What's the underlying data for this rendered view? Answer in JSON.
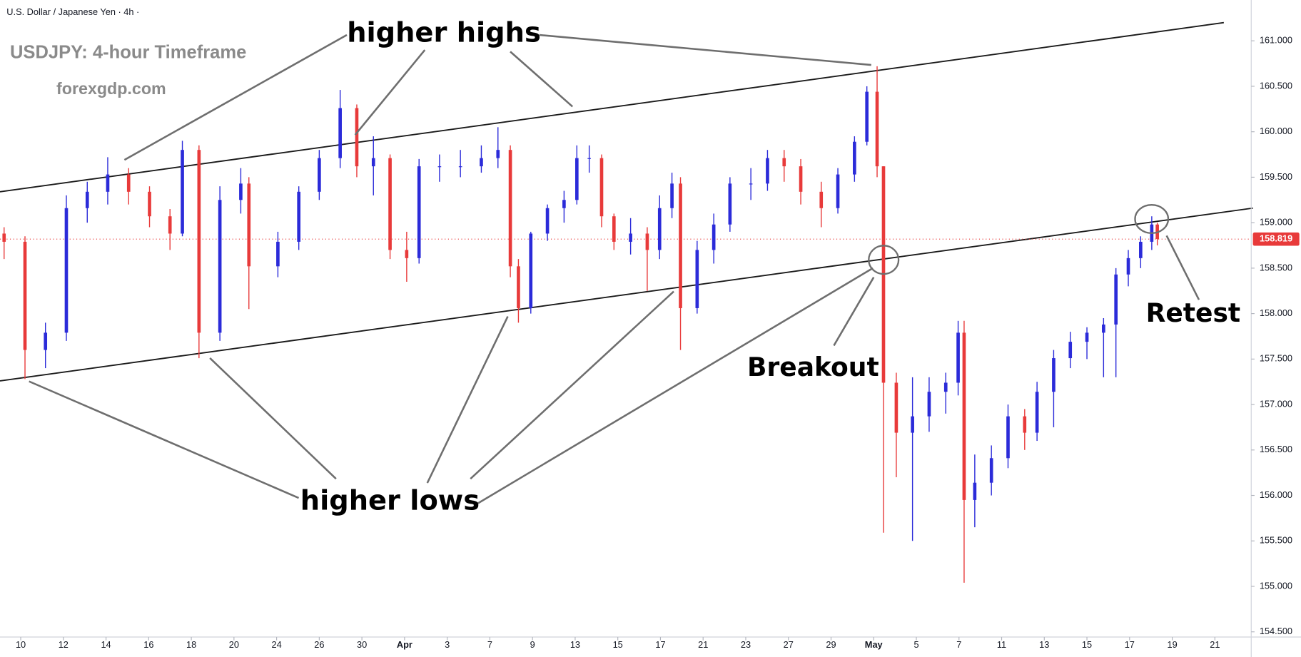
{
  "chart_data": {
    "type": "candlestick",
    "header": "U.S. Dollar / Japanese Yen · 4h ·",
    "title": "USDJPY: 4-hour Timeframe",
    "subtitle": "forexgdp.com",
    "annotations": [
      "higher highs",
      "higher lows",
      "Breakout",
      "Retest"
    ],
    "up_color": "#2b2bd9",
    "down_color": "#e83a3a",
    "x": [
      -0.39,
      0.1,
      0.58,
      1.07,
      1.56,
      2.04,
      2.53,
      3.02,
      3.5,
      3.79,
      4.18,
      4.67,
      5.16,
      5.35,
      6.03,
      6.52,
      7.0,
      7.49,
      7.88,
      8.27,
      8.66,
      9.05,
      9.34,
      9.82,
      10.31,
      10.8,
      11.19,
      11.48,
      11.67,
      11.96,
      12.35,
      12.74,
      13.04,
      13.33,
      13.62,
      13.91,
      14.3,
      14.69,
      14.98,
      15.27,
      15.47,
      15.86,
      16.25,
      16.63,
      17.12,
      17.51,
      17.9,
      18.29,
      18.77,
      19.16,
      19.55,
      19.84,
      20.08,
      20.23,
      20.53,
      20.91,
      21.3,
      21.69,
      21.98,
      22.12,
      22.37,
      22.76,
      23.15,
      23.54,
      23.83,
      24.22,
      24.61,
      25.0,
      25.39,
      25.68,
      25.97,
      26.26,
      26.52,
      26.65
    ],
    "open": [
      158.88,
      158.79,
      157.6,
      157.79,
      159.16,
      159.34,
      159.53,
      159.34,
      159.07,
      158.88,
      159.8,
      157.79,
      159.25,
      159.43,
      158.52,
      158.79,
      159.34,
      159.71,
      160.26,
      159.62,
      159.71,
      158.7,
      158.61,
      159.62,
      159.62,
      159.62,
      159.71,
      159.8,
      158.52,
      158.06,
      158.88,
      159.16,
      159.25,
      159.71,
      159.71,
      159.07,
      158.79,
      158.88,
      158.7,
      159.16,
      159.43,
      158.06,
      158.7,
      158.98,
      159.43,
      159.43,
      159.71,
      159.62,
      159.34,
      159.16,
      159.53,
      159.89,
      160.44,
      159.62,
      157.24,
      156.69,
      156.87,
      157.14,
      157.24,
      157.79,
      155.95,
      156.14,
      156.41,
      156.87,
      156.69,
      157.14,
      157.51,
      157.69,
      157.79,
      157.88,
      158.43,
      158.61,
      158.79,
      158.98
    ],
    "high": [
      158.95,
      158.85,
      157.9,
      159.3,
      159.45,
      159.72,
      159.6,
      159.4,
      159.15,
      159.9,
      159.85,
      159.4,
      159.6,
      159.5,
      158.9,
      159.4,
      159.8,
      160.46,
      160.3,
      159.95,
      159.75,
      158.9,
      159.7,
      159.75,
      159.8,
      159.85,
      160.05,
      159.85,
      158.6,
      158.9,
      159.2,
      159.35,
      159.85,
      159.85,
      159.75,
      159.1,
      159.05,
      158.95,
      159.3,
      159.55,
      159.5,
      158.8,
      159.1,
      159.5,
      159.6,
      159.8,
      159.8,
      159.7,
      159.45,
      159.6,
      159.95,
      160.5,
      160.72,
      159.62,
      157.35,
      157.3,
      157.3,
      157.35,
      157.92,
      157.92,
      156.45,
      156.55,
      157.0,
      156.95,
      157.25,
      157.6,
      157.8,
      157.85,
      157.95,
      158.5,
      158.7,
      158.85,
      159.07,
      159.0
    ],
    "low": [
      158.6,
      157.28,
      157.4,
      157.7,
      159.0,
      159.2,
      159.2,
      158.95,
      158.7,
      158.85,
      157.51,
      157.7,
      159.1,
      158.05,
      158.4,
      158.7,
      159.25,
      159.6,
      159.5,
      159.3,
      158.6,
      158.35,
      158.55,
      159.45,
      159.5,
      159.55,
      159.6,
      158.4,
      157.9,
      158.0,
      158.8,
      159.0,
      159.2,
      159.55,
      158.95,
      158.7,
      158.65,
      158.25,
      158.6,
      159.05,
      157.6,
      158.0,
      158.55,
      158.9,
      159.25,
      159.35,
      159.45,
      159.2,
      158.95,
      159.1,
      159.45,
      159.85,
      159.5,
      155.59,
      156.2,
      155.5,
      156.7,
      156.9,
      157.1,
      155.04,
      155.65,
      156.0,
      156.3,
      156.5,
      156.6,
      156.75,
      157.4,
      157.5,
      157.3,
      157.3,
      158.3,
      158.5,
      158.7,
      158.75
    ],
    "close": [
      158.79,
      157.6,
      157.79,
      159.16,
      159.34,
      159.53,
      159.34,
      159.07,
      158.88,
      159.8,
      157.79,
      159.25,
      159.43,
      158.52,
      158.79,
      159.34,
      159.71,
      160.26,
      159.62,
      159.71,
      158.7,
      158.61,
      159.62,
      159.62,
      159.62,
      159.71,
      159.8,
      158.52,
      158.06,
      158.88,
      159.16,
      159.25,
      159.71,
      159.71,
      159.07,
      158.79,
      158.88,
      158.7,
      159.16,
      159.43,
      158.06,
      158.7,
      158.98,
      159.43,
      159.43,
      159.71,
      159.62,
      159.34,
      159.16,
      159.53,
      159.89,
      160.44,
      159.62,
      157.24,
      156.69,
      156.87,
      157.14,
      157.24,
      157.79,
      155.95,
      156.14,
      156.41,
      156.87,
      156.69,
      157.14,
      157.51,
      157.69,
      157.79,
      157.88,
      158.43,
      158.61,
      158.79,
      158.98,
      158.82
    ],
    "xlim": [
      -0.486,
      28.852
    ],
    "ylim": [
      154.443,
      161.449
    ],
    "xticks": [
      {
        "value": 0,
        "label": "10"
      },
      {
        "value": 1,
        "label": "12"
      },
      {
        "value": 2,
        "label": "14"
      },
      {
        "value": 3,
        "label": "16"
      },
      {
        "value": 4,
        "label": "18"
      },
      {
        "value": 5,
        "label": "20"
      },
      {
        "value": 6,
        "label": "24"
      },
      {
        "value": 7,
        "label": "26"
      },
      {
        "value": 8,
        "label": "30"
      },
      {
        "value": 9,
        "label": "Apr"
      },
      {
        "value": 10,
        "label": "3"
      },
      {
        "value": 11,
        "label": "7"
      },
      {
        "value": 12,
        "label": "9"
      },
      {
        "value": 13,
        "label": "13"
      },
      {
        "value": 14,
        "label": "15"
      },
      {
        "value": 15,
        "label": "17"
      },
      {
        "value": 16,
        "label": "21"
      },
      {
        "value": 17,
        "label": "23"
      },
      {
        "value": 18,
        "label": "27"
      },
      {
        "value": 19,
        "label": "29"
      },
      {
        "value": 20,
        "label": "May"
      },
      {
        "value": 21,
        "label": "5"
      },
      {
        "value": 22,
        "label": "7"
      },
      {
        "value": 23,
        "label": "11"
      },
      {
        "value": 24,
        "label": "13"
      },
      {
        "value": 25,
        "label": "15"
      },
      {
        "value": 26,
        "label": "17"
      },
      {
        "value": 27,
        "label": "19"
      },
      {
        "value": 28,
        "label": "21"
      }
    ],
    "yticks": [
      {
        "value": 154.5,
        "label": "154.500"
      },
      {
        "value": 155,
        "label": "155.000"
      },
      {
        "value": 155.5,
        "label": "155.500"
      },
      {
        "value": 156,
        "label": "156.000"
      },
      {
        "value": 156.5,
        "label": "156.500"
      },
      {
        "value": 157,
        "label": "157.000"
      },
      {
        "value": 157.5,
        "label": "157.500"
      },
      {
        "value": 158,
        "label": "158.000"
      },
      {
        "value": 158.5,
        "label": "158.500"
      },
      {
        "value": 159,
        "label": "159.000"
      },
      {
        "value": 159.5,
        "label": "159.500"
      },
      {
        "value": 160,
        "label": "160.000"
      },
      {
        "value": 160.5,
        "label": "160.500"
      },
      {
        "value": 161,
        "label": "161.000"
      }
    ],
    "trendlines": [
      {
        "x": [
          -0.486,
          28.21
        ],
        "y": [
          159.34,
          161.2
        ]
      },
      {
        "x": [
          -0.486,
          28.89
        ],
        "y": [
          157.26,
          159.16
        ]
      }
    ],
    "last_price": 158.819,
    "grid": false
  }
}
